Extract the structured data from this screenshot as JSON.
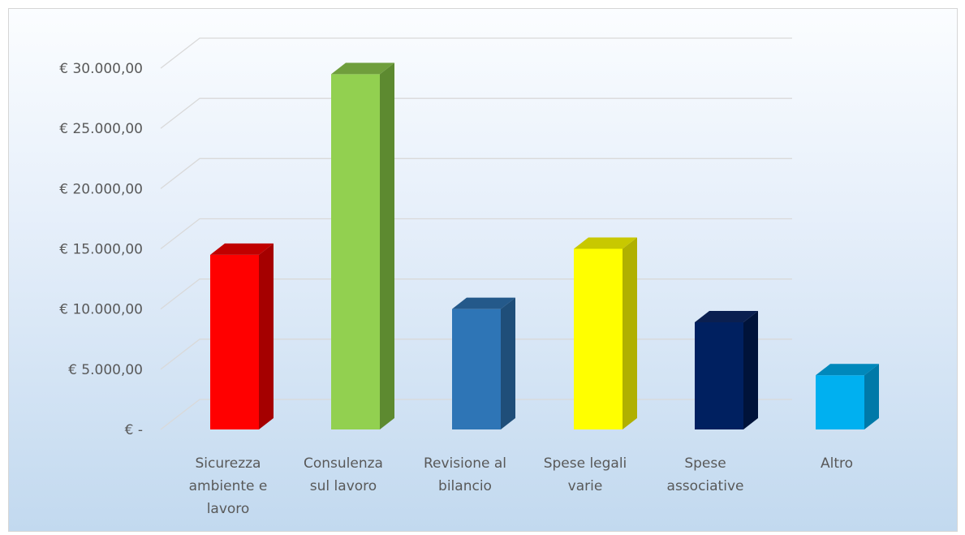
{
  "chart_data": {
    "type": "bar",
    "style": "3d-column",
    "categories": [
      [
        "Sicurezza",
        "ambiente e",
        "lavoro"
      ],
      [
        "Consulenza",
        "sul lavoro"
      ],
      [
        "Revisione al",
        "bilancio"
      ],
      [
        "Spese legali",
        "varie"
      ],
      [
        "Spese",
        "associative"
      ],
      [
        "Altro"
      ]
    ],
    "values": [
      14500,
      29500,
      10000,
      15000,
      8900,
      4500
    ],
    "colors": [
      "#ff0000",
      "#92d050",
      "#2e75b6",
      "#ffff00",
      "#002060",
      "#00b0f0"
    ],
    "side_colors": [
      "#a50000",
      "#5d8a30",
      "#1f4e79",
      "#b0b000",
      "#00133a",
      "#0079a8"
    ],
    "top_colors": [
      "#c00000",
      "#6f9e3c",
      "#24598a",
      "#c8c800",
      "#0a1f50",
      "#0088bb"
    ],
    "ylim": [
      0,
      32000
    ],
    "yticks": [
      0,
      5000,
      10000,
      15000,
      20000,
      25000,
      30000
    ],
    "ytick_labels": [
      "€ -",
      "€ 5.000,00",
      "€ 10.000,00",
      "€ 15.000,00",
      "€ 20.000,00",
      "€ 25.000,00",
      "€ 30.000,00"
    ],
    "grid": true,
    "legend": "none",
    "title": "",
    "xlabel": "",
    "ylabel": ""
  }
}
